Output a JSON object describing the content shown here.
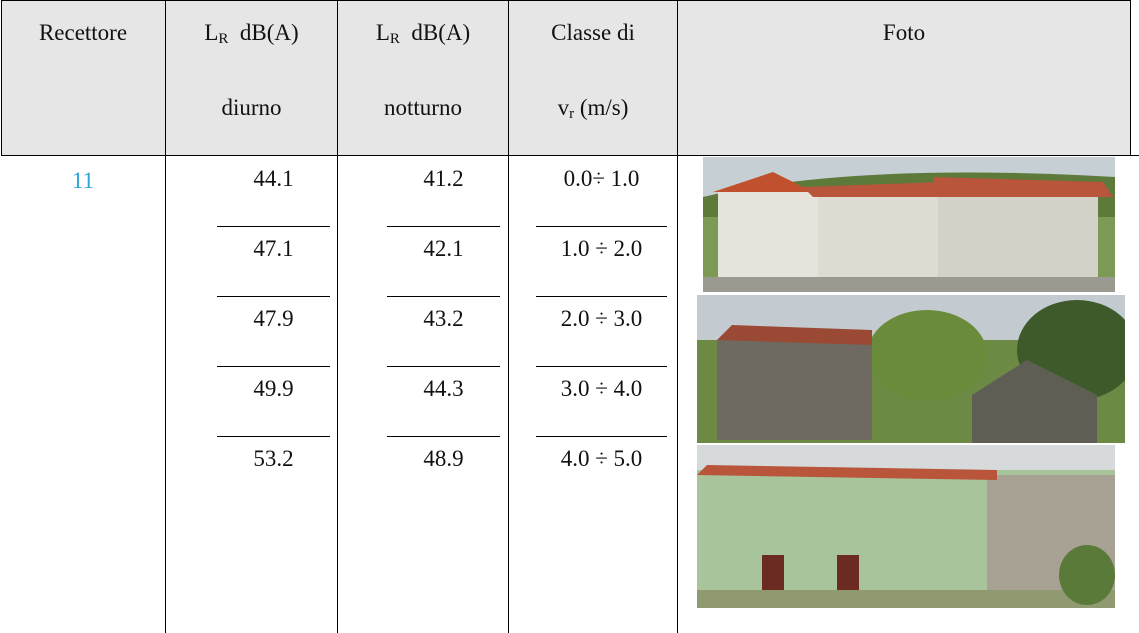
{
  "header": {
    "recettore": "Recettore",
    "columns": [
      {
        "main": "L",
        "sub": "R",
        "rest": "dB(A)",
        "line2": "diurno"
      },
      {
        "main": "L",
        "sub": "R",
        "rest": "dB(A)",
        "line2": "notturno"
      },
      {
        "main": "Classe di",
        "line2_main": "v",
        "line2_sub": "r",
        "line2_rest": "(m/s)"
      }
    ],
    "foto": "Foto"
  },
  "table": {
    "recettore": "11",
    "rows": [
      [
        "44.1",
        "41.2",
        "0.0÷ 1.0"
      ],
      [
        "47.1",
        "42.1",
        "1.0 ÷ 2.0"
      ],
      [
        "47.9",
        "43.2",
        "2.0 ÷ 3.0"
      ],
      [
        "49.9",
        "44.3",
        "3.0 ÷ 4.0"
      ],
      [
        "53.2",
        "48.9",
        "4.0 ÷ 5.0"
      ]
    ]
  }
}
